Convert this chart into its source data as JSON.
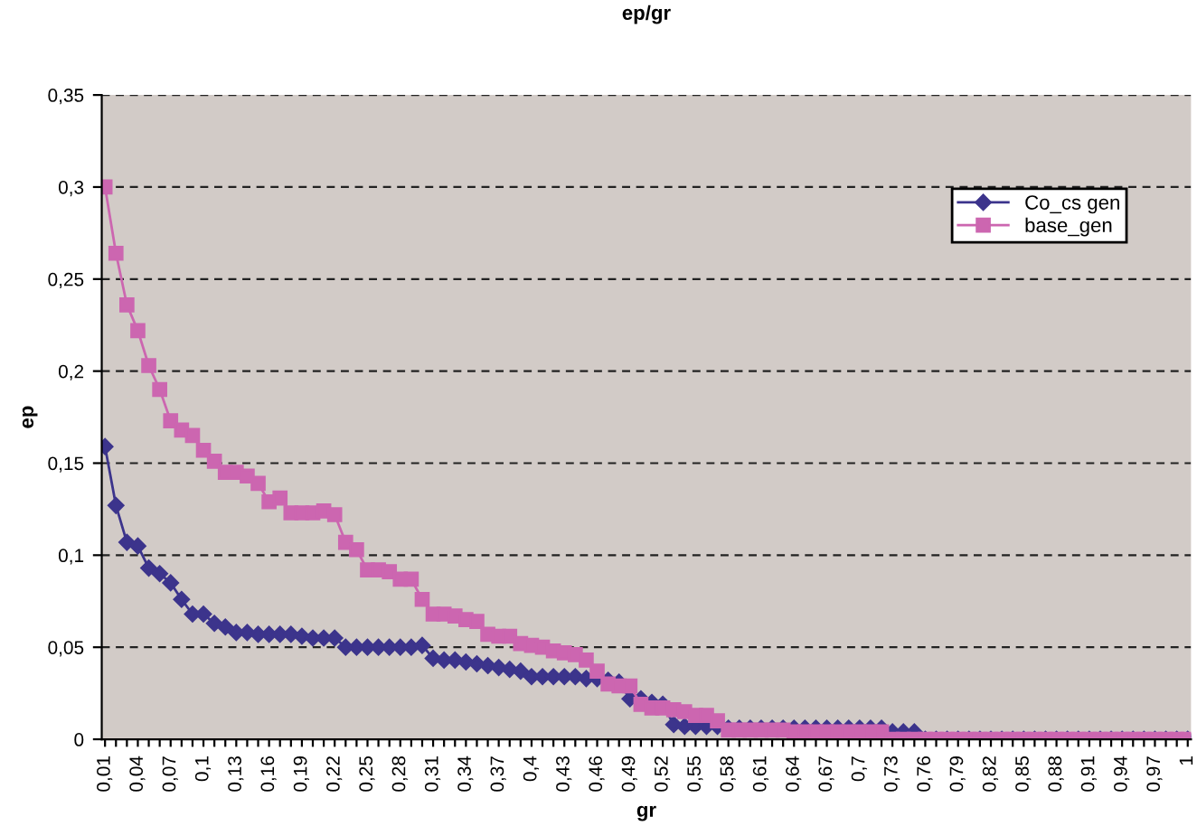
{
  "chart_data": {
    "type": "line",
    "title": "ep/gr",
    "xlabel": "gr",
    "ylabel": "ep",
    "categories": [
      "0,01",
      null,
      null,
      "0,04",
      null,
      null,
      "0,07",
      null,
      null,
      "0,1",
      null,
      null,
      "0,13",
      null,
      null,
      "0,16",
      null,
      null,
      "0,19",
      null,
      null,
      "0,22",
      null,
      null,
      "0,25",
      null,
      null,
      "0,28",
      null,
      null,
      "0,31",
      null,
      null,
      "0,34",
      null,
      null,
      "0,37",
      null,
      null,
      "0,4",
      null,
      null,
      "0,43",
      null,
      null,
      "0,46",
      null,
      null,
      "0,49",
      null,
      null,
      "0,52",
      null,
      null,
      "0,55",
      null,
      null,
      "0,58",
      null,
      null,
      "0,61",
      null,
      null,
      "0,64",
      null,
      null,
      "0,67",
      null,
      null,
      "0,7",
      null,
      null,
      "0,73",
      null,
      null,
      "0,76",
      null,
      null,
      "0,79",
      null,
      null,
      "0,82",
      null,
      null,
      "0,85",
      null,
      null,
      "0,88",
      null,
      null,
      "0,91",
      null,
      null,
      "0,94",
      null,
      null,
      "0,97",
      null,
      null,
      "1"
    ],
    "series": [
      {
        "name": "Co_cs gen",
        "color": "#3c348c",
        "marker": "diamond",
        "values": [
          0.159,
          0.127,
          0.107,
          0.105,
          0.093,
          0.09,
          0.085,
          0.076,
          0.068,
          0.068,
          0.063,
          0.061,
          0.058,
          0.058,
          0.057,
          0.057,
          0.057,
          0.057,
          0.056,
          0.055,
          0.055,
          0.055,
          0.05,
          0.05,
          0.05,
          0.05,
          0.05,
          0.05,
          0.05,
          0.051,
          0.044,
          0.043,
          0.043,
          0.042,
          0.041,
          0.04,
          0.039,
          0.038,
          0.037,
          0.034,
          0.034,
          0.034,
          0.034,
          0.034,
          0.033,
          0.033,
          0.032,
          0.031,
          0.022,
          0.022,
          0.02,
          0.019,
          0.008,
          0.007,
          0.007,
          0.007,
          0.007,
          0.006,
          0.006,
          0.006,
          0.006,
          0.006,
          0.006,
          0.006,
          0.006,
          0.006,
          0.006,
          0.006,
          0.006,
          0.006,
          0.006,
          0.006,
          0.004,
          0.004,
          0.004,
          0,
          0,
          0,
          0,
          0,
          0,
          0,
          0,
          0,
          0,
          0,
          0,
          0,
          0,
          0,
          0,
          0,
          0,
          0,
          0,
          0,
          0,
          0,
          0,
          0
        ]
      },
      {
        "name": "base_gen",
        "color": "#cc66b0",
        "marker": "square",
        "values": [
          0.3,
          0.264,
          0.236,
          0.222,
          0.203,
          0.19,
          0.173,
          0.168,
          0.165,
          0.157,
          0.151,
          0.145,
          0.145,
          0.143,
          0.139,
          0.129,
          0.131,
          0.123,
          0.123,
          0.123,
          0.124,
          0.122,
          0.107,
          0.103,
          0.092,
          0.092,
          0.091,
          0.087,
          0.087,
          0.076,
          0.068,
          0.068,
          0.067,
          0.065,
          0.064,
          0.057,
          0.056,
          0.056,
          0.052,
          0.051,
          0.05,
          0.048,
          0.047,
          0.046,
          0.043,
          0.037,
          0.03,
          0.029,
          0.029,
          0.019,
          0.017,
          0.017,
          0.016,
          0.015,
          0.013,
          0.013,
          0.01,
          0.005,
          0.005,
          0.005,
          0.005,
          0.005,
          0.005,
          0.004,
          0.004,
          0.004,
          0.004,
          0.004,
          0.004,
          0.004,
          0.004,
          0.004,
          0,
          0,
          0,
          0,
          0,
          0,
          0,
          0,
          0,
          0,
          0,
          0,
          0,
          0,
          0,
          0,
          0,
          0,
          0,
          0,
          0,
          0,
          0,
          0,
          0,
          0,
          0,
          0
        ]
      }
    ],
    "ylim": [
      0,
      0.35
    ],
    "yticks": [
      {
        "value": 0,
        "label": "0"
      },
      {
        "value": 0.05,
        "label": "0,05"
      },
      {
        "value": 0.1,
        "label": "0,1"
      },
      {
        "value": 0.15,
        "label": "0,15"
      },
      {
        "value": 0.2,
        "label": "0,2"
      },
      {
        "value": 0.25,
        "label": "0,25"
      },
      {
        "value": 0.3,
        "label": "0,3"
      },
      {
        "value": 0.35,
        "label": "0,35"
      }
    ],
    "grid": "y",
    "line_style": "solid",
    "legend": "top right"
  }
}
